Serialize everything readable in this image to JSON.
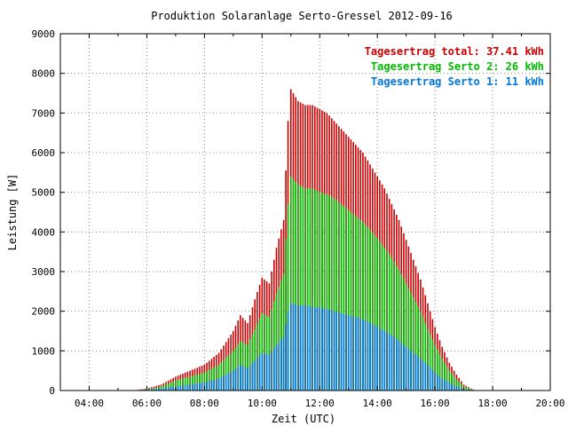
{
  "chart_data": {
    "type": "bar",
    "title": "Produktion Solaranlage Serto-Gressel 2012-09-16",
    "xlabel": "Zeit (UTC)",
    "ylabel": "Leistung [W]",
    "xlim": [
      3,
      20
    ],
    "ylim": [
      0,
      9000
    ],
    "grid": true,
    "legend_position": "top-right",
    "xticks": [
      "04:00",
      "06:00",
      "08:00",
      "10:00",
      "12:00",
      "14:00",
      "16:00",
      "18:00",
      "20:00"
    ],
    "yticks": [
      "0",
      "1000",
      "2000",
      "3000",
      "4000",
      "5000",
      "6000",
      "7000",
      "8000",
      "9000"
    ],
    "colors": {
      "total": "#cc0000",
      "serto2": "#00bb00",
      "serto1": "#0077dd"
    },
    "legend": [
      {
        "text": "Tagesertrag total: 37.41 kWh",
        "color": "#cc0000"
      },
      {
        "text": "Tagesertrag Serto 2: 26 kWh",
        "color": "#00bb00"
      },
      {
        "text": "Tagesertrag Serto 1: 11 kWh",
        "color": "#0077dd"
      }
    ],
    "series": [
      {
        "name": "total",
        "x": [
          5.5,
          6.0,
          6.5,
          7.0,
          7.5,
          8.0,
          8.5,
          9.0,
          9.25,
          9.5,
          9.75,
          10.0,
          10.25,
          10.5,
          10.75,
          10.9,
          11.0,
          11.25,
          11.5,
          11.75,
          12.0,
          12.25,
          12.5,
          12.75,
          13.0,
          13.25,
          13.5,
          13.75,
          14.0,
          14.25,
          14.5,
          14.75,
          15.0,
          15.25,
          15.5,
          15.75,
          16.0,
          16.25,
          16.5,
          16.75,
          17.0,
          17.25,
          17.4
        ],
        "values": [
          0,
          50,
          150,
          350,
          500,
          650,
          950,
          1500,
          1900,
          1700,
          2300,
          2850,
          2700,
          3600,
          4300,
          6800,
          7600,
          7300,
          7200,
          7200,
          7100,
          7000,
          6800,
          6600,
          6400,
          6200,
          6000,
          5700,
          5400,
          5100,
          4700,
          4300,
          3800,
          3300,
          2800,
          2200,
          1600,
          1100,
          700,
          400,
          150,
          50,
          0
        ]
      },
      {
        "name": "Serto 2",
        "x": [
          5.5,
          6.0,
          6.5,
          7.0,
          7.5,
          8.0,
          8.5,
          9.0,
          9.25,
          9.5,
          9.75,
          10.0,
          10.25,
          10.5,
          10.75,
          10.9,
          11.0,
          11.25,
          11.5,
          11.75,
          12.0,
          12.25,
          12.5,
          12.75,
          13.0,
          13.25,
          13.5,
          13.75,
          14.0,
          14.25,
          14.5,
          14.75,
          15.0,
          15.25,
          15.5,
          15.75,
          16.0,
          16.25,
          16.5,
          16.75,
          17.0,
          17.25,
          17.4
        ],
        "values": [
          0,
          30,
          100,
          250,
          350,
          450,
          650,
          1000,
          1250,
          1150,
          1550,
          1950,
          1850,
          2450,
          2950,
          4700,
          5400,
          5200,
          5100,
          5100,
          5000,
          4950,
          4850,
          4700,
          4550,
          4400,
          4250,
          4050,
          3850,
          3600,
          3350,
          3050,
          2700,
          2350,
          2000,
          1550,
          1150,
          800,
          500,
          280,
          100,
          30,
          0
        ]
      },
      {
        "name": "Serto 1",
        "x": [
          5.5,
          6.0,
          6.5,
          7.0,
          7.5,
          8.0,
          8.5,
          9.0,
          9.25,
          9.5,
          9.75,
          10.0,
          10.25,
          10.5,
          10.75,
          10.9,
          11.0,
          11.25,
          11.5,
          11.75,
          12.0,
          12.25,
          12.5,
          12.75,
          13.0,
          13.25,
          13.5,
          13.75,
          14.0,
          14.25,
          14.5,
          14.75,
          15.0,
          15.25,
          15.5,
          15.75,
          16.0,
          16.25,
          16.5,
          16.75,
          17.0,
          17.25,
          17.4
        ],
        "values": [
          0,
          20,
          50,
          100,
          150,
          200,
          300,
          500,
          650,
          550,
          750,
          950,
          900,
          1150,
          1350,
          2000,
          2200,
          2150,
          2150,
          2100,
          2100,
          2050,
          2000,
          1950,
          1900,
          1850,
          1800,
          1700,
          1600,
          1500,
          1400,
          1250,
          1100,
          950,
          800,
          650,
          450,
          300,
          200,
          100,
          40,
          10,
          0
        ]
      }
    ]
  }
}
